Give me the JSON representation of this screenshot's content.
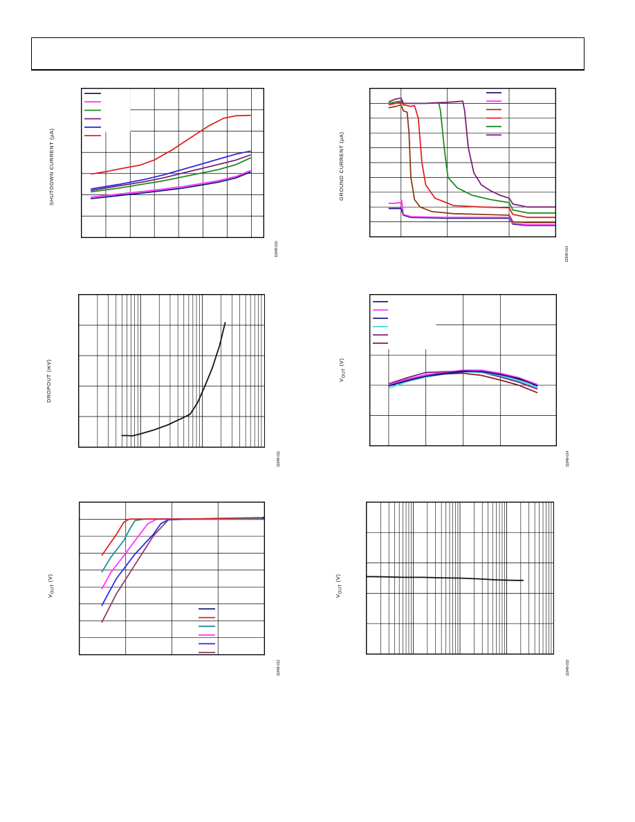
{
  "page": {
    "header": ""
  },
  "chart_data": [
    {
      "id": "shutdown",
      "type": "line",
      "ylabel_main": "SHUTDOWN CURRENT (",
      "ylabel_unit": "µA",
      "ylabel_end": ")",
      "figure_number": "11848-010",
      "xlim": [
        0,
        100
      ],
      "ylim": [
        0,
        100
      ],
      "vgrid": [
        0,
        13.3,
        26.7,
        40,
        53.3,
        66.7,
        80,
        93.3,
        100
      ],
      "hgrid": [
        0,
        14.3,
        28.6,
        42.9,
        57.1,
        71.4,
        85.7,
        100
      ],
      "legend_colors": [
        "#1a1a7e",
        "#ff33ff",
        "#1f8a1f",
        "#7a1f7a",
        "#2a2ae0",
        "#e02020"
      ],
      "series": [
        {
          "color": "#e02020",
          "x": [
            5,
            15,
            25,
            32,
            40,
            50,
            60,
            70,
            78,
            85,
            93
          ],
          "y": [
            42.5,
            44.5,
            47,
            48.5,
            52,
            59,
            67,
            75,
            80,
            81.7,
            82
          ]
        },
        {
          "color": "#2a2ae0",
          "x": [
            5,
            20,
            35,
            45,
            55,
            65,
            75,
            85,
            93
          ],
          "y": [
            32.5,
            35.5,
            39,
            42,
            45.5,
            49,
            52.5,
            56,
            58
          ]
        },
        {
          "color": "#7a1f7a",
          "x": [
            5,
            20,
            35,
            45,
            55,
            65,
            75,
            85,
            93
          ],
          "y": [
            31.5,
            34.5,
            37.5,
            40,
            43,
            46,
            49,
            52,
            55.5
          ]
        },
        {
          "color": "#1f8a1f",
          "x": [
            5,
            20,
            35,
            45,
            55,
            65,
            75,
            85,
            93
          ],
          "y": [
            30.5,
            33,
            36,
            38,
            40.5,
            43,
            45.5,
            49,
            53.5
          ]
        },
        {
          "color": "#ff33ff",
          "x": [
            5,
            20,
            35,
            45,
            55,
            65,
            75,
            85,
            93
          ],
          "y": [
            27,
            29,
            31,
            32.5,
            34,
            36,
            38,
            41,
            45
          ]
        },
        {
          "color": "#1a1a7e",
          "x": [
            5,
            20,
            35,
            45,
            55,
            65,
            75,
            85,
            93
          ],
          "y": [
            26,
            28,
            30,
            31.5,
            33,
            35,
            37,
            40,
            44
          ]
        }
      ]
    },
    {
      "id": "ground",
      "type": "line",
      "ylabel_main": "GROUND CURRENT (",
      "ylabel_unit": "µA",
      "ylabel_end": ")",
      "figure_number": "11848-013",
      "xlim": [
        0,
        100
      ],
      "ylim": [
        0,
        100
      ],
      "vgrid": [
        0,
        16.7,
        41.7,
        75,
        100
      ],
      "hgrid": [
        0,
        10,
        20,
        30,
        40,
        50,
        60,
        70,
        80,
        90,
        100
      ],
      "legend_colors": [
        "#1a1a7e",
        "#ff33ff",
        "#8b3a0f",
        "#e02020",
        "#1f8a1f",
        "#7a1f7a"
      ],
      "series": [
        {
          "color": "#1a1a7e",
          "x": [
            10,
            13,
            16.7,
            18,
            22,
            40,
            60,
            75,
            77,
            85,
            100
          ],
          "y": [
            19,
            19,
            19,
            14.5,
            13,
            12.5,
            12.5,
            12.5,
            8.5,
            7.5,
            7.5
          ]
        },
        {
          "color": "#ff33ff",
          "x": [
            10,
            13,
            16.5,
            17,
            18,
            22,
            40,
            60,
            75,
            77,
            85,
            100
          ],
          "y": [
            22.5,
            22.5,
            23,
            24.5,
            15,
            13.5,
            13,
            13,
            13,
            9,
            8,
            8
          ]
        },
        {
          "color": "#8b3a0f",
          "x": [
            10,
            14,
            16.7,
            18,
            20,
            21,
            22,
            24,
            27,
            33,
            45,
            60,
            75,
            77,
            85,
            100
          ],
          "y": [
            87,
            88,
            89,
            85,
            84,
            70,
            40,
            25,
            20,
            17,
            15.5,
            15,
            14.5,
            10,
            9.5,
            9.5
          ]
        },
        {
          "color": "#e02020",
          "x": [
            10,
            14,
            16.7,
            18,
            22,
            24,
            26,
            28,
            30,
            35,
            45,
            60,
            75,
            77,
            85,
            100
          ],
          "y": [
            89,
            90,
            91,
            89,
            88,
            88.5,
            80,
            50,
            35,
            26,
            21,
            20,
            19.5,
            15,
            13,
            13
          ]
        },
        {
          "color": "#1f8a1f",
          "x": [
            10,
            14,
            16.7,
            18,
            30,
            37,
            38,
            40,
            42,
            47,
            55,
            65,
            75,
            77,
            85,
            100
          ],
          "y": [
            90,
            91,
            91.5,
            90,
            90,
            90.5,
            85,
            60,
            40,
            33,
            28,
            25,
            23,
            18,
            16,
            16
          ]
        },
        {
          "color": "#7a1f7a",
          "x": [
            10,
            12,
            14,
            16.7,
            18,
            30,
            45,
            50,
            51,
            53,
            56,
            60,
            65,
            70,
            75,
            77,
            85,
            100
          ],
          "y": [
            91,
            92,
            93,
            93.5,
            90,
            90,
            91,
            91.5,
            85,
            60,
            43,
            35,
            31,
            28,
            26,
            22,
            20,
            20
          ]
        }
      ]
    },
    {
      "id": "dropout",
      "type": "line",
      "ylabel_main": "DROPOUT (mV)",
      "figure_number": "11848-011",
      "xscale": "log",
      "xlim": [
        0,
        100
      ],
      "ylim": [
        0,
        100
      ],
      "hgrid": [
        0,
        20,
        40,
        60,
        80,
        100
      ],
      "log_decades": 3,
      "series": [
        {
          "color": "#111111",
          "x": [
            23,
            26,
            29,
            33,
            40,
            48,
            55,
            60,
            64,
            68,
            72,
            76,
            79
          ],
          "y": [
            7.5,
            7.5,
            7.3,
            8.5,
            11,
            14.5,
            18.5,
            21.5,
            29,
            40,
            52,
            67,
            82
          ]
        }
      ]
    },
    {
      "id": "vout_temp",
      "type": "line",
      "ylabel_main": "V",
      "ylabel_sub": "OUT",
      "ylabel_end": " (V)",
      "figure_number": "11848-014",
      "xlim": [
        0,
        100
      ],
      "ylim": [
        0,
        100
      ],
      "vgrid": [
        0,
        10,
        30,
        50,
        70,
        100
      ],
      "hgrid": [
        0,
        20,
        40,
        60,
        80,
        100
      ],
      "legend_colors": [
        "#1a1a7e",
        "#ff33ff",
        "#1a1a7e",
        "#33e0e0",
        "#7a1f7a",
        "#8b1a1a"
      ],
      "series": [
        {
          "color": "#8b1a1a",
          "x": [
            10,
            20,
            30,
            40,
            50,
            60,
            70,
            80,
            90
          ],
          "y": [
            40,
            43.5,
            46,
            47.5,
            48,
            46.5,
            43.5,
            40,
            35
          ]
        },
        {
          "color": "#7a1f7a",
          "x": [
            10,
            20,
            30,
            40,
            50,
            60,
            70,
            80,
            90
          ],
          "y": [
            41,
            45,
            48.5,
            49,
            49.5,
            48.5,
            45.5,
            42,
            37.5
          ]
        },
        {
          "color": "#33e0e0",
          "x": [
            10,
            20,
            30,
            40,
            50,
            60,
            70,
            80,
            90
          ],
          "y": [
            38,
            42.5,
            45.5,
            47.5,
            49,
            48.5,
            46.5,
            43,
            38.5
          ]
        },
        {
          "color": "#1a1a7e",
          "x": [
            10,
            20,
            30,
            40,
            50,
            60,
            70,
            80,
            90
          ],
          "y": [
            40,
            43.5,
            46,
            47.5,
            49,
            49.5,
            47.5,
            44,
            40
          ]
        },
        {
          "color": "#ff33ff",
          "x": [
            10,
            20,
            30,
            40,
            50,
            60,
            70,
            80,
            90
          ],
          "y": [
            40.5,
            44,
            47,
            48.5,
            50,
            50,
            48,
            45,
            40.5
          ]
        },
        {
          "color": "#1a1a7e",
          "x": [
            10,
            20,
            30,
            40,
            50,
            60,
            70,
            80,
            90
          ],
          "y": [
            39.5,
            43,
            46,
            48,
            49.5,
            49,
            47,
            44.5,
            39.5
          ]
        }
      ]
    },
    {
      "id": "vout_vin",
      "type": "line",
      "ylabel_main": "V",
      "ylabel_sub": "OUT",
      "ylabel_end": " (V)",
      "figure_number": "11848-012",
      "xlim": [
        0,
        100
      ],
      "ylim": [
        0,
        100
      ],
      "vgrid": [
        0,
        25,
        50,
        75,
        100
      ],
      "hgrid": [
        0,
        11.1,
        22.2,
        33.3,
        44.4,
        55.5,
        66.6,
        77.7,
        88.8,
        100
      ],
      "legend_colors": [
        "#1a1a7e",
        "#e02020",
        "#1a9090",
        "#ff33ff",
        "#2a2ae0",
        "#8a3a6a"
      ],
      "series": [
        {
          "color": "#8a3a6a",
          "x": [
            12,
            20,
            30,
            40,
            48,
            53,
            60,
            75,
            100
          ],
          "y": [
            21,
            40,
            59,
            78,
            88.5,
            89,
            89,
            89,
            89
          ]
        },
        {
          "color": "#2a2ae0",
          "x": [
            12,
            20,
            30,
            40,
            44,
            48,
            60,
            75,
            100
          ],
          "y": [
            32,
            50,
            66,
            79,
            86,
            88.5,
            89,
            89,
            89
          ]
        },
        {
          "color": "#ff33ff",
          "x": [
            12,
            17,
            24,
            32,
            37,
            42,
            60,
            75,
            100
          ],
          "y": [
            43,
            54,
            65,
            78,
            86,
            89,
            89,
            89,
            89
          ]
        },
        {
          "color": "#1a9090",
          "x": [
            12,
            17,
            24,
            27,
            30,
            35,
            60,
            75,
            100
          ],
          "y": [
            54,
            64,
            75,
            82,
            88,
            89,
            89,
            89,
            89
          ]
        },
        {
          "color": "#e02020",
          "x": [
            12,
            16,
            20,
            24,
            27,
            32,
            60,
            75,
            100
          ],
          "y": [
            65,
            72,
            79,
            87,
            89,
            89,
            89,
            89.5,
            90
          ]
        },
        {
          "color": "#1a1a7e",
          "x": [
            99,
            100
          ],
          "y": [
            89,
            90.5
          ]
        }
      ]
    },
    {
      "id": "vout_load",
      "type": "line",
      "ylabel_main": "V",
      "ylabel_sub": "OUT",
      "ylabel_end": " (V)",
      "figure_number": "11848-015",
      "xscale": "log",
      "xlim": [
        0,
        100
      ],
      "ylim": [
        0,
        100
      ],
      "hgrid": [
        0,
        20,
        40,
        60,
        80,
        100
      ],
      "log_decades": 4,
      "series": [
        {
          "color": "#111111",
          "x": [
            0,
            10,
            20,
            30,
            40,
            50,
            60,
            70,
            80,
            84
          ],
          "y": [
            51,
            50.8,
            50.5,
            50.5,
            50.2,
            50,
            49.5,
            48.8,
            48.5,
            48.5
          ]
        }
      ]
    }
  ]
}
